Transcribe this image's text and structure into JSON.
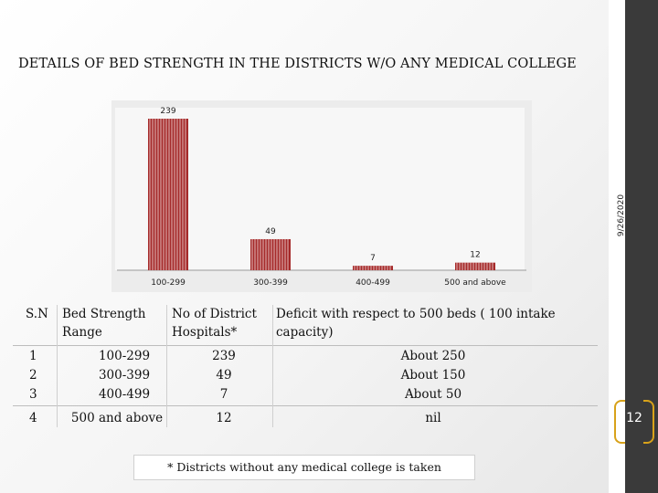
{
  "slide": {
    "title": "DETAILS OF BED STRENGTH IN THE DISTRICTS W/O ANY MEDICAL COLLEGE",
    "date": "9/26/2020",
    "page_number": "12"
  },
  "chart_data": {
    "type": "bar",
    "title": "",
    "xlabel": "",
    "ylabel": "",
    "categories": [
      "100-299",
      "300-399",
      "400-499",
      "500 and above"
    ],
    "values": [
      239,
      49,
      7,
      12
    ],
    "data_labels": [
      "239",
      "49",
      "7",
      "12"
    ],
    "ylim": [
      0,
      239
    ],
    "bar_color": "#a52a2a",
    "grid": false
  },
  "table": {
    "headers": [
      "S.N",
      "Bed Strength Range",
      "No of District Hospitals*",
      "Deficit with respect to 500 beds ( 100 intake capacity)"
    ],
    "rows": [
      [
        "1",
        "100-299",
        "239",
        "About 250"
      ],
      [
        "2",
        "300-399",
        "49",
        "About 150"
      ],
      [
        "3",
        "400-499",
        "7",
        "About 50"
      ],
      [
        "4",
        "500 and above",
        "12",
        "nil"
      ]
    ]
  },
  "footnote": "* Districts without any medical college is taken",
  "colors": {
    "sidebar": "#3a3a3a",
    "accent": "#d8a21a",
    "bar": "#a52a2a"
  }
}
